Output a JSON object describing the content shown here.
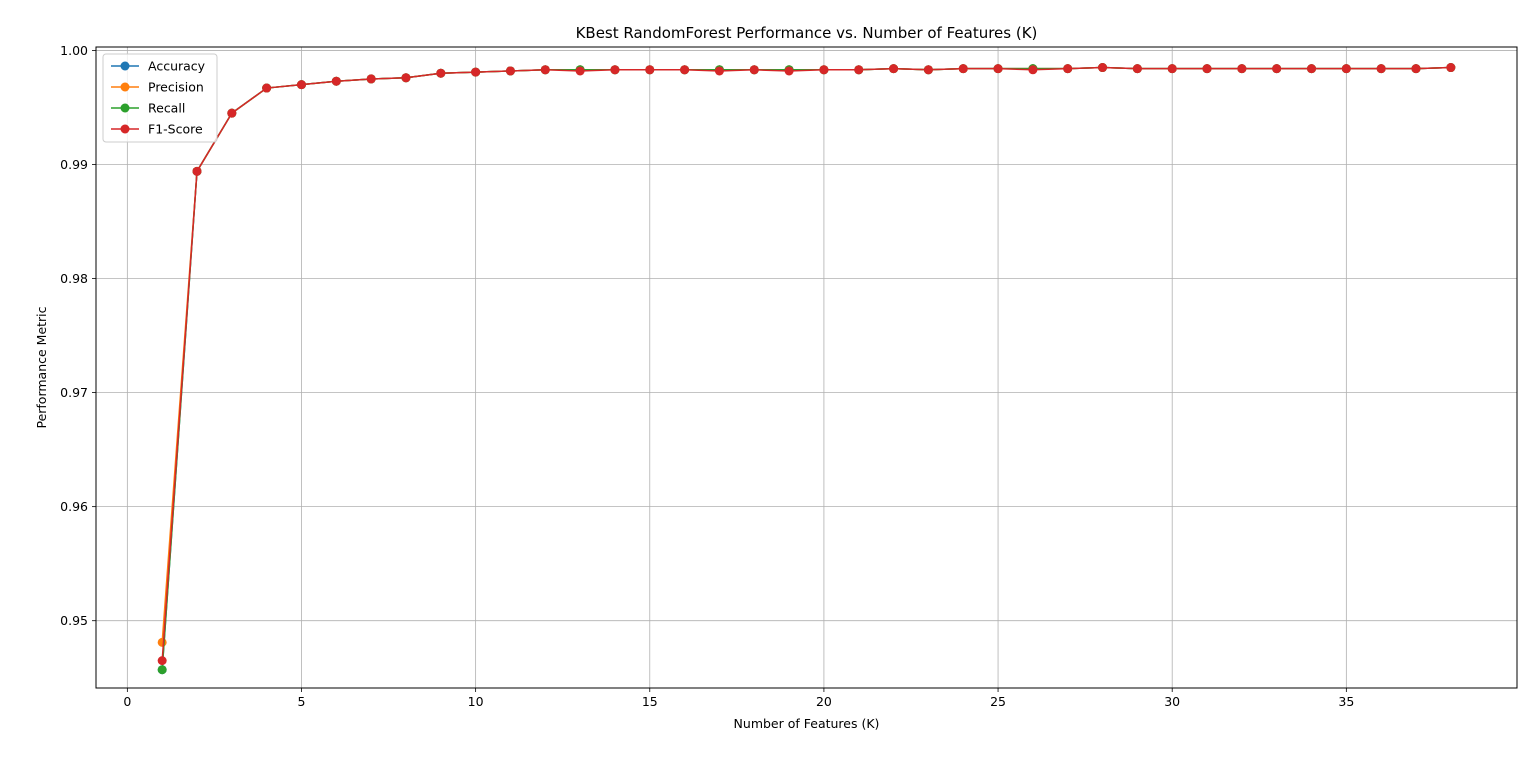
{
  "chart_data": {
    "type": "line",
    "title": "KBest RandomForest Performance vs. Number of Features (K)",
    "xlabel": "Number of Features (K)",
    "ylabel": "Performance Metric",
    "xlim": [
      -0.9,
      39.9
    ],
    "ylim": [
      0.9441,
      1.0003
    ],
    "xticks": [
      0,
      5,
      10,
      15,
      20,
      25,
      30,
      35
    ],
    "xtick_labels": [
      "0",
      "5",
      "10",
      "15",
      "20",
      "25",
      "30",
      "35"
    ],
    "yticks": [
      0.95,
      0.96,
      0.97,
      0.98,
      0.99,
      1.0
    ],
    "ytick_labels": [
      "0.95",
      "0.96",
      "0.97",
      "0.98",
      "0.99",
      "1.00"
    ],
    "grid": true,
    "legend_position": "top-left",
    "marker": "circle",
    "x": [
      1,
      2,
      3,
      4,
      5,
      6,
      7,
      8,
      9,
      10,
      11,
      12,
      13,
      14,
      15,
      16,
      17,
      18,
      19,
      20,
      21,
      22,
      23,
      24,
      25,
      26,
      27,
      28,
      29,
      30,
      31,
      32,
      33,
      34,
      35,
      36,
      37,
      38
    ],
    "series": [
      {
        "name": "Accuracy",
        "color": "#1f77b4",
        "values": [
          0.9457,
          0.9894,
          0.9945,
          0.9967,
          0.997,
          0.9973,
          0.9975,
          0.9976,
          0.998,
          0.9981,
          0.9982,
          0.9983,
          0.9983,
          0.9983,
          0.9983,
          0.9983,
          0.9983,
          0.9983,
          0.9983,
          0.9983,
          0.9983,
          0.9984,
          0.9983,
          0.9984,
          0.9984,
          0.9984,
          0.9984,
          0.9985,
          0.9984,
          0.9984,
          0.9984,
          0.9984,
          0.9984,
          0.9984,
          0.9984,
          0.9984,
          0.9984,
          0.9985
        ]
      },
      {
        "name": "Precision",
        "color": "#ff7f0e",
        "values": [
          0.9481,
          0.9894,
          0.9945,
          0.9967,
          0.997,
          0.9973,
          0.9975,
          0.9976,
          0.998,
          0.9981,
          0.9982,
          0.9983,
          0.9983,
          0.9983,
          0.9983,
          0.9983,
          0.9983,
          0.9983,
          0.9983,
          0.9983,
          0.9983,
          0.9984,
          0.9983,
          0.9984,
          0.9984,
          0.9984,
          0.9984,
          0.9985,
          0.9984,
          0.9984,
          0.9984,
          0.9984,
          0.9984,
          0.9984,
          0.9984,
          0.9984,
          0.9984,
          0.9985
        ]
      },
      {
        "name": "Recall",
        "color": "#2ca02c",
        "values": [
          0.9457,
          0.9894,
          0.9945,
          0.9967,
          0.997,
          0.9973,
          0.9975,
          0.9976,
          0.998,
          0.9981,
          0.9982,
          0.9983,
          0.9983,
          0.9983,
          0.9983,
          0.9983,
          0.9983,
          0.9983,
          0.9983,
          0.9983,
          0.9983,
          0.9984,
          0.9983,
          0.9984,
          0.9984,
          0.9984,
          0.9984,
          0.9985,
          0.9984,
          0.9984,
          0.9984,
          0.9984,
          0.9984,
          0.9984,
          0.9984,
          0.9984,
          0.9984,
          0.9985
        ]
      },
      {
        "name": "F1-Score",
        "color": "#d62728",
        "values": [
          0.9465,
          0.9894,
          0.9945,
          0.9967,
          0.997,
          0.9973,
          0.9975,
          0.9976,
          0.998,
          0.9981,
          0.9982,
          0.9983,
          0.9982,
          0.9983,
          0.9983,
          0.9983,
          0.9982,
          0.9983,
          0.9982,
          0.9983,
          0.9983,
          0.9984,
          0.9983,
          0.9984,
          0.9984,
          0.9983,
          0.9984,
          0.9985,
          0.9984,
          0.9984,
          0.9984,
          0.9984,
          0.9984,
          0.9984,
          0.9984,
          0.9984,
          0.9984,
          0.9985
        ]
      }
    ]
  }
}
